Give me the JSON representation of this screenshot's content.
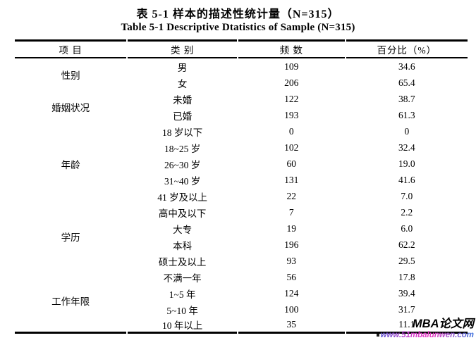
{
  "page": {
    "background": "#ffffff",
    "text_color": "#000000",
    "border_color": "#000000"
  },
  "titles": {
    "zh": "表 5-1 样本的描述性统计量（N=315）",
    "en": "Table 5-1 Descriptive Dtatistics of Sample (N=315)"
  },
  "table": {
    "headers": [
      "项 目",
      "类 别",
      "频 数",
      "百分比（%）"
    ],
    "groups": [
      {
        "item": "性别",
        "rows": [
          [
            "男",
            "109",
            "34.6"
          ],
          [
            "女",
            "206",
            "65.4"
          ]
        ]
      },
      {
        "item": "婚姻状况",
        "rows": [
          [
            "未婚",
            "122",
            "38.7"
          ],
          [
            "已婚",
            "193",
            "61.3"
          ]
        ]
      },
      {
        "item": "年龄",
        "rows": [
          [
            "18 岁以下",
            "0",
            "0"
          ],
          [
            "18~25 岁",
            "102",
            "32.4"
          ],
          [
            "26~30 岁",
            "60",
            "19.0"
          ],
          [
            "31~40 岁",
            "131",
            "41.6"
          ],
          [
            "41 岁及以上",
            "22",
            "7.0"
          ]
        ]
      },
      {
        "item": "学历",
        "rows": [
          [
            "高中及以下",
            "7",
            "2.2"
          ],
          [
            "大专",
            "19",
            "6.0"
          ],
          [
            "本科",
            "196",
            "62.2"
          ],
          [
            "硕士及以上",
            "93",
            "29.5"
          ]
        ]
      },
      {
        "item": "工作年限",
        "rows": [
          [
            "不满一年",
            "56",
            "17.8"
          ],
          [
            "1~5 年",
            "124",
            "39.4"
          ],
          [
            "5~10 年",
            "100",
            "31.7"
          ],
          [
            "10 年以上",
            "35",
            "11.1"
          ]
        ]
      }
    ]
  },
  "watermark": {
    "name": "MBA论文网",
    "url": "www.51mbalunwen.com",
    "name_color": "#000000",
    "url_gradient": [
      "#5b50d2",
      "#d738c9",
      "#e637c0",
      "#3b72dd"
    ]
  }
}
